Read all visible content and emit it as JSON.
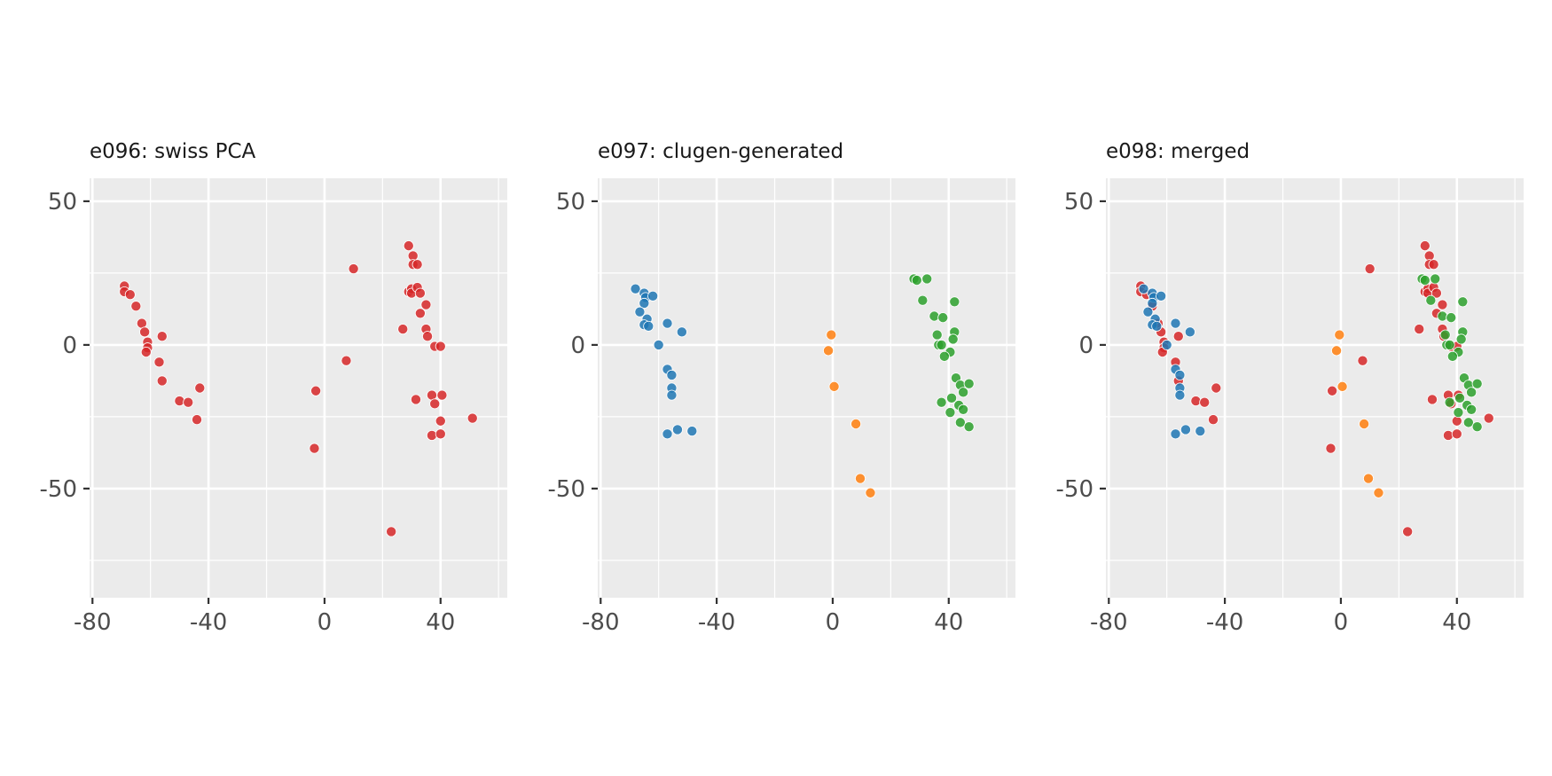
{
  "colors": {
    "red": "#d62728",
    "blue": "#1f77b4",
    "orange": "#ff7f0e",
    "green": "#2ca02c",
    "panel_background": "#ebebeb",
    "grid": "#ffffff"
  },
  "chart_data": [
    {
      "type": "scatter",
      "title": "e096: swiss PCA",
      "xlabel": "",
      "ylabel": "",
      "xlim": [
        -81,
        63
      ],
      "ylim": [
        -88,
        58
      ],
      "x_ticks": [
        -80,
        -40,
        0,
        40
      ],
      "x_tick_labels": [
        "-80",
        "-40",
        "0",
        "40"
      ],
      "y_ticks": [
        50,
        0,
        -50
      ],
      "y_tick_labels": [
        "50",
        "0",
        "-50"
      ],
      "grid": true,
      "legend": "none",
      "series": [
        {
          "color": "#d62728",
          "points": [
            [
              -69,
              20.5
            ],
            [
              -69,
              18.5
            ],
            [
              -67,
              17.5
            ],
            [
              -65,
              13.5
            ],
            [
              -63,
              7.5
            ],
            [
              -62,
              4.5
            ],
            [
              -61,
              1
            ],
            [
              -61,
              -1
            ],
            [
              -61.5,
              -2.5
            ],
            [
              -56,
              3
            ],
            [
              -57,
              -6
            ],
            [
              -56,
              -12.5
            ],
            [
              -50,
              -19.5
            ],
            [
              -47,
              -20
            ],
            [
              -43,
              -15
            ],
            [
              -44,
              -26
            ],
            [
              -3,
              -16
            ],
            [
              -3.5,
              -36
            ],
            [
              7.5,
              -5.5
            ],
            [
              10,
              26.5
            ],
            [
              23,
              -65
            ],
            [
              27,
              5.5
            ],
            [
              29,
              34.5
            ],
            [
              29,
              18.5
            ],
            [
              30,
              19.5
            ],
            [
              30,
              18
            ],
            [
              30.5,
              31
            ],
            [
              30.5,
              28
            ],
            [
              32,
              28
            ],
            [
              32,
              20
            ],
            [
              33,
              18
            ],
            [
              33,
              11
            ],
            [
              35,
              14
            ],
            [
              35,
              5.5
            ],
            [
              35.5,
              3
            ],
            [
              31.5,
              -19
            ],
            [
              37,
              -17.5
            ],
            [
              38,
              -20.5
            ],
            [
              37,
              -31.5
            ],
            [
              40,
              -31
            ],
            [
              38,
              -0.5
            ],
            [
              40,
              -0.5
            ],
            [
              40,
              -26.5
            ],
            [
              40.5,
              -17.5
            ],
            [
              51,
              -25.5
            ]
          ]
        }
      ]
    },
    {
      "type": "scatter",
      "title": "e097: clugen-generated",
      "xlabel": "",
      "ylabel": "",
      "xlim": [
        -81,
        63
      ],
      "ylim": [
        -88,
        58
      ],
      "x_ticks": [
        -80,
        -40,
        0,
        40
      ],
      "x_tick_labels": [
        "-80",
        "-40",
        "0",
        "40"
      ],
      "y_ticks": [
        50,
        0,
        -50
      ],
      "y_tick_labels": [
        "50",
        "0",
        "-50"
      ],
      "grid": true,
      "legend": "none",
      "series": [
        {
          "color": "#1f77b4",
          "points": [
            [
              -68,
              19.5
            ],
            [
              -65,
              18
            ],
            [
              -64.5,
              16.5
            ],
            [
              -62,
              17
            ],
            [
              -65,
              14.5
            ],
            [
              -66.5,
              11.5
            ],
            [
              -64,
              9
            ],
            [
              -65,
              7
            ],
            [
              -63.5,
              6.5
            ],
            [
              -57,
              7.5
            ],
            [
              -52,
              4.5
            ],
            [
              -60,
              0
            ],
            [
              -57,
              -8.5
            ],
            [
              -55.5,
              -10.5
            ],
            [
              -55.5,
              -15
            ],
            [
              -55.5,
              -17.5
            ],
            [
              -57,
              -31
            ],
            [
              -53.5,
              -29.5
            ],
            [
              -48.5,
              -30
            ]
          ]
        },
        {
          "color": "#ff7f0e",
          "points": [
            [
              -0.5,
              3.5
            ],
            [
              -1.5,
              -2
            ],
            [
              0.5,
              -14.5
            ],
            [
              8,
              -27.5
            ],
            [
              9.5,
              -46.5
            ],
            [
              13,
              -51.5
            ]
          ]
        },
        {
          "color": "#2ca02c",
          "points": [
            [
              28,
              23
            ],
            [
              29,
              22.5
            ],
            [
              32.5,
              23
            ],
            [
              31,
              15.5
            ],
            [
              42,
              15
            ],
            [
              35,
              10
            ],
            [
              38,
              9.5
            ],
            [
              42,
              4.5
            ],
            [
              36,
              3.5
            ],
            [
              41.5,
              2
            ],
            [
              36.5,
              0
            ],
            [
              37.5,
              0
            ],
            [
              40.5,
              -2.5
            ],
            [
              38.5,
              -4
            ],
            [
              37.5,
              -20
            ],
            [
              41,
              -18.5
            ],
            [
              43.5,
              -21
            ],
            [
              42.5,
              -11.5
            ],
            [
              44,
              -14
            ],
            [
              47,
              -13.5
            ],
            [
              45,
              -16.5
            ],
            [
              40.5,
              -23.5
            ],
            [
              45,
              -22.5
            ],
            [
              44,
              -27
            ],
            [
              47,
              -28.5
            ]
          ]
        }
      ]
    },
    {
      "type": "scatter",
      "title": "e098: merged",
      "xlabel": "",
      "ylabel": "",
      "xlim": [
        -81,
        63
      ],
      "ylim": [
        -88,
        58
      ],
      "x_ticks": [
        -80,
        -40,
        0,
        40
      ],
      "x_tick_labels": [
        "-80",
        "-40",
        "0",
        "40"
      ],
      "y_ticks": [
        50,
        0,
        -50
      ],
      "y_tick_labels": [
        "50",
        "0",
        "-50"
      ],
      "grid": true,
      "legend": "none",
      "series": [
        {
          "color": "#d62728",
          "points": [
            [
              -69,
              20.5
            ],
            [
              -69,
              18.5
            ],
            [
              -67,
              17.5
            ],
            [
              -65,
              13.5
            ],
            [
              -63,
              7.5
            ],
            [
              -62,
              4.5
            ],
            [
              -61,
              1
            ],
            [
              -61,
              -1
            ],
            [
              -61.5,
              -2.5
            ],
            [
              -56,
              3
            ],
            [
              -57,
              -6
            ],
            [
              -56,
              -12.5
            ],
            [
              -50,
              -19.5
            ],
            [
              -47,
              -20
            ],
            [
              -43,
              -15
            ],
            [
              -44,
              -26
            ],
            [
              -3,
              -16
            ],
            [
              -3.5,
              -36
            ],
            [
              7.5,
              -5.5
            ],
            [
              10,
              26.5
            ],
            [
              23,
              -65
            ],
            [
              27,
              5.5
            ],
            [
              29,
              34.5
            ],
            [
              29,
              18.5
            ],
            [
              30,
              19.5
            ],
            [
              30,
              18
            ],
            [
              30.5,
              31
            ],
            [
              30.5,
              28
            ],
            [
              32,
              28
            ],
            [
              32,
              20
            ],
            [
              33,
              18
            ],
            [
              33,
              11
            ],
            [
              35,
              14
            ],
            [
              35,
              5.5
            ],
            [
              35.5,
              3
            ],
            [
              31.5,
              -19
            ],
            [
              37,
              -17.5
            ],
            [
              38,
              -20.5
            ],
            [
              37,
              -31.5
            ],
            [
              40,
              -31
            ],
            [
              38,
              -0.5
            ],
            [
              40,
              -0.5
            ],
            [
              40,
              -26.5
            ],
            [
              40.5,
              -17.5
            ],
            [
              51,
              -25.5
            ]
          ]
        },
        {
          "color": "#1f77b4",
          "points": [
            [
              -68,
              19.5
            ],
            [
              -65,
              18
            ],
            [
              -64.5,
              16.5
            ],
            [
              -62,
              17
            ],
            [
              -65,
              14.5
            ],
            [
              -66.5,
              11.5
            ],
            [
              -64,
              9
            ],
            [
              -65,
              7
            ],
            [
              -63.5,
              6.5
            ],
            [
              -57,
              7.5
            ],
            [
              -52,
              4.5
            ],
            [
              -60,
              0
            ],
            [
              -57,
              -8.5
            ],
            [
              -55.5,
              -10.5
            ],
            [
              -55.5,
              -15
            ],
            [
              -55.5,
              -17.5
            ],
            [
              -57,
              -31
            ],
            [
              -53.5,
              -29.5
            ],
            [
              -48.5,
              -30
            ]
          ]
        },
        {
          "color": "#ff7f0e",
          "points": [
            [
              -0.5,
              3.5
            ],
            [
              -1.5,
              -2
            ],
            [
              0.5,
              -14.5
            ],
            [
              8,
              -27.5
            ],
            [
              9.5,
              -46.5
            ],
            [
              13,
              -51.5
            ]
          ]
        },
        {
          "color": "#2ca02c",
          "points": [
            [
              28,
              23
            ],
            [
              29,
              22.5
            ],
            [
              32.5,
              23
            ],
            [
              31,
              15.5
            ],
            [
              42,
              15
            ],
            [
              35,
              10
            ],
            [
              38,
              9.5
            ],
            [
              42,
              4.5
            ],
            [
              36,
              3.5
            ],
            [
              41.5,
              2
            ],
            [
              36.5,
              0
            ],
            [
              37.5,
              0
            ],
            [
              40.5,
              -2.5
            ],
            [
              38.5,
              -4
            ],
            [
              37.5,
              -20
            ],
            [
              41,
              -18.5
            ],
            [
              43.5,
              -21
            ],
            [
              42.5,
              -11.5
            ],
            [
              44,
              -14
            ],
            [
              47,
              -13.5
            ],
            [
              45,
              -16.5
            ],
            [
              40.5,
              -23.5
            ],
            [
              45,
              -22.5
            ],
            [
              44,
              -27
            ],
            [
              47,
              -28.5
            ]
          ]
        }
      ]
    }
  ]
}
